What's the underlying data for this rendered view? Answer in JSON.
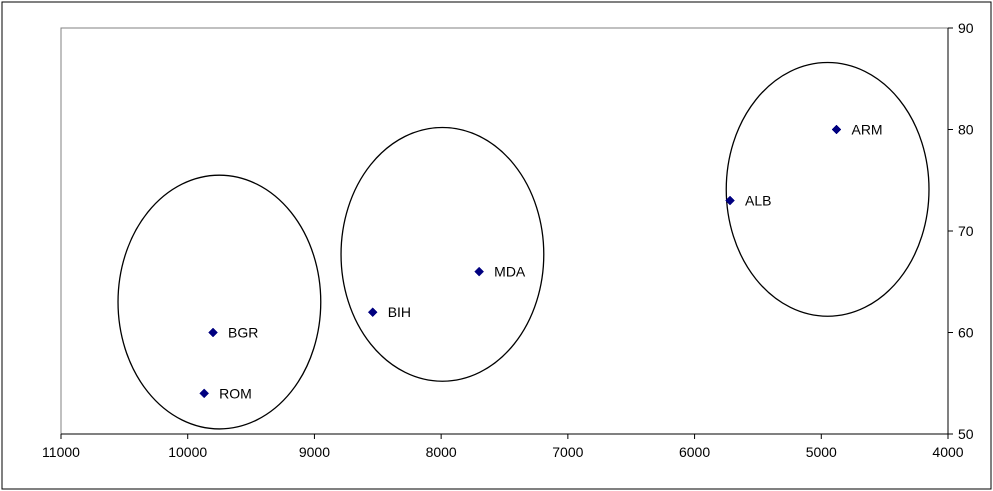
{
  "chart_data": {
    "type": "scatter",
    "title": "",
    "xlabel": "",
    "ylabel": "",
    "x_reversed": true,
    "xlim": [
      11000,
      4000
    ],
    "ylim": [
      50,
      90
    ],
    "y_axis_position": "right",
    "x_ticks": [
      11000,
      10000,
      9000,
      8000,
      7000,
      6000,
      5000,
      4000
    ],
    "y_ticks": [
      50,
      60,
      70,
      80,
      90
    ],
    "x_tick_labels": [
      "11000",
      "10000",
      "9000",
      "8000",
      "7000",
      "6000",
      "5000",
      "4000"
    ],
    "y_tick_labels": [
      "50",
      "60",
      "70",
      "80",
      "90"
    ],
    "grid": false,
    "legend": false,
    "marker_color": "#000080",
    "points": [
      {
        "label": "ARM",
        "x": 4880,
        "y": 80
      },
      {
        "label": "ALB",
        "x": 5720,
        "y": 73
      },
      {
        "label": "MDA",
        "x": 7700,
        "y": 66
      },
      {
        "label": "BIH",
        "x": 8540,
        "y": 62
      },
      {
        "label": "BGR",
        "x": 9800,
        "y": 60
      },
      {
        "label": "ROM",
        "x": 9870,
        "y": 54
      }
    ],
    "groups": [
      {
        "members": [
          "BGR",
          "ROM"
        ],
        "center": {
          "x": 9750,
          "y": 63
        },
        "rx": 800,
        "ry": 12.5
      },
      {
        "members": [
          "BIH",
          "MDA"
        ],
        "center": {
          "x": 7990,
          "y": 67.7
        },
        "rx": 800,
        "ry": 12.5
      },
      {
        "members": [
          "ALB",
          "ARM"
        ],
        "center": {
          "x": 4950,
          "y": 74.1
        },
        "rx": 800,
        "ry": 12.5
      }
    ]
  }
}
